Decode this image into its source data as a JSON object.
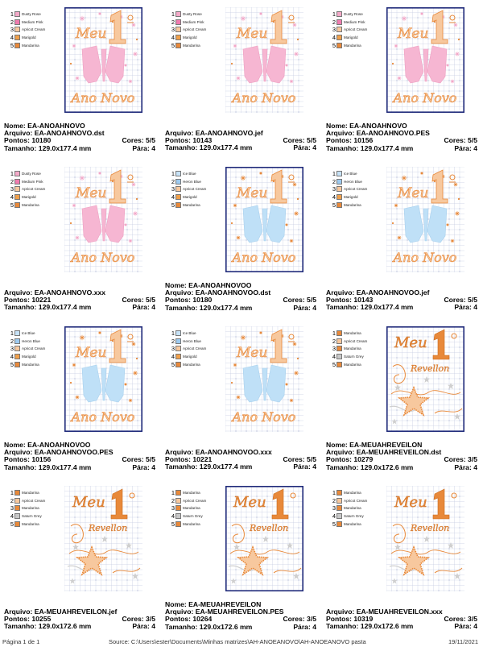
{
  "cards": [
    {
      "colors": [
        {
          "num": "1",
          "name": "Dusty Rose",
          "color": "#f4a9c8"
        },
        {
          "num": "2",
          "name": "Medium Pink",
          "color": "#f07bb0"
        },
        {
          "num": "3",
          "name": "Apricot Cream",
          "color": "#f7c89e"
        },
        {
          "num": "4",
          "name": "Marigold",
          "color": "#f0a04b"
        },
        {
          "num": "5",
          "name": "Mandarina",
          "color": "#e8893a"
        }
      ],
      "design": "anonovo",
      "frame": "navy",
      "glasses": "pink",
      "text1": "Meu",
      "text2": "Ano Novo",
      "info": [
        {
          "left": "Nome: EA-ANOAHNOVO"
        },
        {
          "left": "Arquivo: EA-ANOAHNOVO.dst"
        },
        {
          "left": "Pontos: 10180",
          "right": "Cores: 5/5"
        },
        {
          "left": "Tamanho: 129.0x177.4 mm",
          "right": "Pára: 4"
        }
      ]
    },
    {
      "colors": [
        {
          "num": "1",
          "name": "Dusty Rose",
          "color": "#f4a9c8"
        },
        {
          "num": "2",
          "name": "Medium Pink",
          "color": "#f07bb0"
        },
        {
          "num": "3",
          "name": "Apricot Cream",
          "color": "#f7c89e"
        },
        {
          "num": "4",
          "name": "Marigold",
          "color": "#f0a04b"
        },
        {
          "num": "5",
          "name": "Mandarina",
          "color": "#e8893a"
        }
      ],
      "design": "anonovo",
      "frame": "none",
      "glasses": "pink",
      "text1": "Meu",
      "text2": "Ano Novo",
      "info": [
        {
          "left": "Arquivo: EA-ANOAHNOVO.jef"
        },
        {
          "left": "Pontos: 10143",
          "right": "Cores: 5/5"
        },
        {
          "left": "Tamanho: 129.0x177.4 mm",
          "right": "Pára: 4"
        }
      ]
    },
    {
      "colors": [
        {
          "num": "1",
          "name": "Dusty Rose",
          "color": "#f4a9c8"
        },
        {
          "num": "2",
          "name": "Medium Pink",
          "color": "#f07bb0"
        },
        {
          "num": "3",
          "name": "Apricot Cream",
          "color": "#f7c89e"
        },
        {
          "num": "4",
          "name": "Marigold",
          "color": "#f0a04b"
        },
        {
          "num": "5",
          "name": "Mandarina",
          "color": "#e8893a"
        }
      ],
      "design": "anonovo",
      "frame": "navy",
      "glasses": "pink",
      "text1": "Meu",
      "text2": "Ano Novo",
      "info": [
        {
          "left": "Nome: EA-ANOAHNOVO"
        },
        {
          "left": "Arquivo: EA-ANOAHNOVO.PES"
        },
        {
          "left": "Pontos: 10156",
          "right": "Cores: 5/5"
        },
        {
          "left": "Tamanho: 129.0x177.4 mm",
          "right": "Pára: 4"
        }
      ]
    },
    {
      "colors": [
        {
          "num": "1",
          "name": "Dusty Rose",
          "color": "#f4a9c8"
        },
        {
          "num": "2",
          "name": "Medium Pink",
          "color": "#f07bb0"
        },
        {
          "num": "3",
          "name": "Apricot Cream",
          "color": "#f7c89e"
        },
        {
          "num": "4",
          "name": "Marigold",
          "color": "#f0a04b"
        },
        {
          "num": "5",
          "name": "Mandarina",
          "color": "#e8893a"
        }
      ],
      "design": "anonovo",
      "frame": "none",
      "glasses": "pink",
      "text1": "Meu",
      "text2": "Ano Novo",
      "info": [
        {
          "left": "Arquivo: EA-ANOAHNOVO.xxx"
        },
        {
          "left": "Pontos: 10221",
          "right": "Cores: 5/5"
        },
        {
          "left": "Tamanho: 129.0x177.4 mm",
          "right": "Pára: 4"
        }
      ]
    },
    {
      "colors": [
        {
          "num": "1",
          "name": "Ice Blue",
          "color": "#c6e2f7"
        },
        {
          "num": "2",
          "name": "Heron Blue",
          "color": "#9ccaf0"
        },
        {
          "num": "3",
          "name": "Apricot Cream",
          "color": "#f7c89e"
        },
        {
          "num": "4",
          "name": "Marigold",
          "color": "#f0a04b"
        },
        {
          "num": "5",
          "name": "Mandarina",
          "color": "#e8893a"
        }
      ],
      "design": "anonovo",
      "frame": "navy",
      "glasses": "blue",
      "text1": "Meu",
      "text2": "Ano Novo",
      "info": [
        {
          "left": "Nome: EA-ANOAHNOVOO"
        },
        {
          "left": "Arquivo: EA-ANOAHNOVOO.dst"
        },
        {
          "left": "Pontos: 10180",
          "right": "Cores: 5/5"
        },
        {
          "left": "Tamanho: 129.0x177.4 mm",
          "right": "Pára: 4"
        }
      ]
    },
    {
      "colors": [
        {
          "num": "1",
          "name": "Ice Blue",
          "color": "#c6e2f7"
        },
        {
          "num": "2",
          "name": "Heron Blue",
          "color": "#9ccaf0"
        },
        {
          "num": "3",
          "name": "Apricot Cream",
          "color": "#f7c89e"
        },
        {
          "num": "4",
          "name": "Marigold",
          "color": "#f0a04b"
        },
        {
          "num": "5",
          "name": "Mandarina",
          "color": "#e8893a"
        }
      ],
      "design": "anonovo",
      "frame": "none",
      "glasses": "blue",
      "text1": "Meu",
      "text2": "Ano Novo",
      "info": [
        {
          "left": "Arquivo: EA-ANOAHNOVOO.jef"
        },
        {
          "left": "Pontos: 10143",
          "right": "Cores: 5/5"
        },
        {
          "left": "Tamanho: 129.0x177.4 mm",
          "right": "Pára: 4"
        }
      ]
    },
    {
      "colors": [
        {
          "num": "1",
          "name": "Ice Blue",
          "color": "#c6e2f7"
        },
        {
          "num": "2",
          "name": "Heron Blue",
          "color": "#9ccaf0"
        },
        {
          "num": "3",
          "name": "Apricot Cream",
          "color": "#f7c89e"
        },
        {
          "num": "4",
          "name": "Marigold",
          "color": "#f0a04b"
        },
        {
          "num": "5",
          "name": "Mandarina",
          "color": "#e8893a"
        }
      ],
      "design": "anonovo",
      "frame": "navy",
      "glasses": "blue",
      "text1": "Meu",
      "text2": "Ano Novo",
      "info": [
        {
          "left": "Nome: EA-ANOAHNOVOO"
        },
        {
          "left": "Arquivo: EA-ANOAHNOVOO.PES"
        },
        {
          "left": "Pontos: 10156",
          "right": "Cores: 5/5"
        },
        {
          "left": "Tamanho: 129.0x177.4 mm",
          "right": "Pára: 4"
        }
      ]
    },
    {
      "colors": [
        {
          "num": "1",
          "name": "Ice Blue",
          "color": "#c6e2f7"
        },
        {
          "num": "2",
          "name": "Heron Blue",
          "color": "#9ccaf0"
        },
        {
          "num": "3",
          "name": "Apricot Cream",
          "color": "#f7c89e"
        },
        {
          "num": "4",
          "name": "Marigold",
          "color": "#f0a04b"
        },
        {
          "num": "5",
          "name": "Mandarina",
          "color": "#e8893a"
        }
      ],
      "design": "anonovo",
      "frame": "none",
      "glasses": "blue",
      "text1": "Meu",
      "text2": "Ano Novo",
      "info": [
        {
          "left": "Arquivo: EA-ANOAHNOVOO.xxx"
        },
        {
          "left": "Pontos: 10221",
          "right": "Cores: 5/5"
        },
        {
          "left": "Tamanho: 129.0x177.4 mm",
          "right": "Pára: 4"
        }
      ]
    },
    {
      "colors": [
        {
          "num": "1",
          "name": "Mandarina",
          "color": "#e8893a"
        },
        {
          "num": "2",
          "name": "Apricot Cream",
          "color": "#f7c89e"
        },
        {
          "num": "3",
          "name": "Mandarina",
          "color": "#e8893a"
        },
        {
          "num": "4",
          "name": "Saturn Grey",
          "color": "#c8c8c8"
        },
        {
          "num": "5",
          "name": "Mandarina",
          "color": "#e8893a"
        }
      ],
      "design": "reveillon",
      "frame": "navy",
      "text1": "Meu",
      "text2": "Revellon",
      "info": [
        {
          "left": "Nome: EA-MEUAHREVEILON"
        },
        {
          "left": "Arquivo: EA-MEUAHREVEILON.dst"
        },
        {
          "left": "Pontos: 10279",
          "right": "Cores: 3/5"
        },
        {
          "left": "Tamanho: 129.0x172.6 mm",
          "right": "Pára: 4"
        }
      ]
    },
    {
      "colors": [
        {
          "num": "1",
          "name": "Mandarina",
          "color": "#e8893a"
        },
        {
          "num": "2",
          "name": "Apricot Cream",
          "color": "#f7c89e"
        },
        {
          "num": "3",
          "name": "Mandarina",
          "color": "#e8893a"
        },
        {
          "num": "4",
          "name": "Saturn Grey",
          "color": "#c8c8c8"
        },
        {
          "num": "5",
          "name": "Mandarina",
          "color": "#e8893a"
        }
      ],
      "design": "reveillon",
      "frame": "none",
      "text1": "Meu",
      "text2": "Revellon",
      "info": [
        {
          "left": "Arquivo: EA-MEUAHREVEILON.jef"
        },
        {
          "left": "Pontos: 10255",
          "right": "Cores: 3/5"
        },
        {
          "left": "Tamanho: 129.0x172.6 mm",
          "right": "Pára: 4"
        }
      ]
    },
    {
      "colors": [
        {
          "num": "1",
          "name": "Mandarina",
          "color": "#e8893a"
        },
        {
          "num": "2",
          "name": "Apricot Cream",
          "color": "#f7c89e"
        },
        {
          "num": "3",
          "name": "Mandarina",
          "color": "#e8893a"
        },
        {
          "num": "4",
          "name": "Saturn Grey",
          "color": "#c8c8c8"
        },
        {
          "num": "5",
          "name": "Mandarina",
          "color": "#e8893a"
        }
      ],
      "design": "reveillon",
      "frame": "navy",
      "text1": "Meu",
      "text2": "Revellon",
      "info": [
        {
          "left": "Nome: EA-MEUAHREVEILON"
        },
        {
          "left": "Arquivo: EA-MEUAHREVEILON.PES"
        },
        {
          "left": "Pontos: 10264",
          "right": "Cores: 3/5"
        },
        {
          "left": "Tamanho: 129.0x172.6 mm",
          "right": "Pára: 4"
        }
      ]
    },
    {
      "colors": [
        {
          "num": "1",
          "name": "Mandarina",
          "color": "#e8893a"
        },
        {
          "num": "2",
          "name": "Apricot Cream",
          "color": "#f7c89e"
        },
        {
          "num": "3",
          "name": "Mandarina",
          "color": "#e8893a"
        },
        {
          "num": "4",
          "name": "Saturn Grey",
          "color": "#c8c8c8"
        },
        {
          "num": "5",
          "name": "Mandarina",
          "color": "#e8893a"
        }
      ],
      "design": "reveillon",
      "frame": "none",
      "text1": "Meu",
      "text2": "Revellon",
      "info": [
        {
          "left": "Arquivo: EA-MEUAHREVEILON.xxx"
        },
        {
          "left": "Pontos: 10319",
          "right": "Cores: 3/5"
        },
        {
          "left": "Tamanho: 129.0x172.6 mm",
          "right": "Pára: 4"
        }
      ]
    }
  ],
  "theme": {
    "frame_color": "#1f2a7a",
    "grid_color": "#c9cfe4",
    "grid_dot": "#8e97c0",
    "orange": "#e8893a",
    "orange_light": "#f7c89e",
    "pink": "#f6b6d2",
    "blue": "#bfe0f7",
    "grey": "#cfcfcf"
  },
  "footer": {
    "page": "Página 1 de 1",
    "source": "Source: C:\\Users\\ester\\Documents\\Minhas matrizes\\AH-ANOEANOVO\\AH-ANOEANOVO pasta",
    "date": "19/11/2021"
  }
}
